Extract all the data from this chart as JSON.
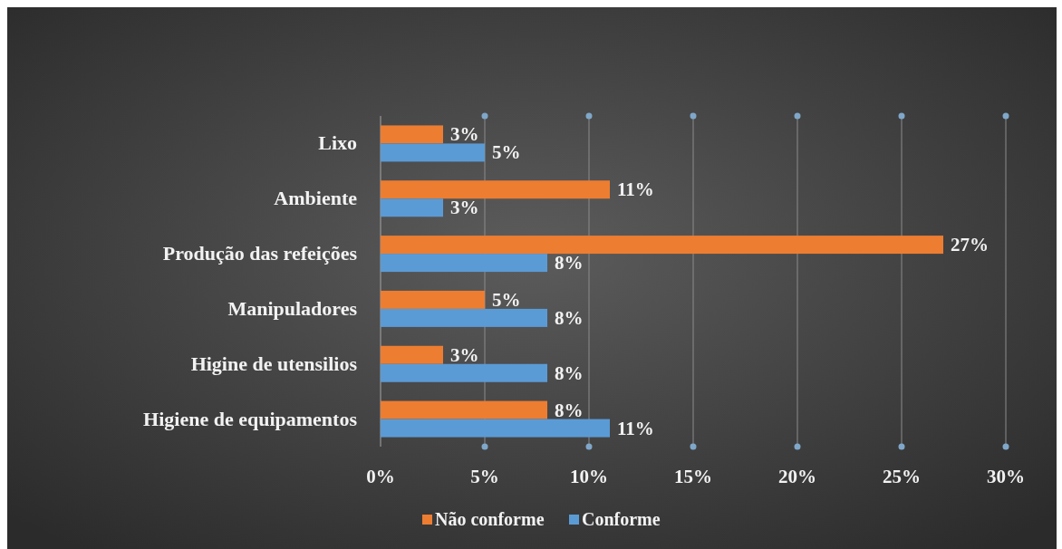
{
  "chart_data": {
    "type": "bar",
    "orientation": "horizontal",
    "categories": [
      "Lixo",
      "Ambiente",
      "Produção das refeições",
      "Manipuladores",
      "Higine de utensilios",
      "Higiene de equipamentos"
    ],
    "series": [
      {
        "name": "Não conforme",
        "color": "#ed7d31",
        "values": [
          3,
          11,
          27,
          5,
          3,
          8
        ],
        "value_labels": [
          "3%",
          "11%",
          "27%",
          "5%",
          "3%",
          "8%"
        ]
      },
      {
        "name": "Conforme",
        "color": "#5b9bd5",
        "values": [
          5,
          3,
          8,
          8,
          8,
          11
        ],
        "value_labels": [
          "5%",
          "3%",
          "8%",
          "8%",
          "8%",
          "11%"
        ]
      }
    ],
    "xlim": [
      0,
      30
    ],
    "xticks": [
      {
        "value": 0,
        "label": "0%"
      },
      {
        "value": 5,
        "label": "5%"
      },
      {
        "value": 10,
        "label": "10%"
      },
      {
        "value": 15,
        "label": "15%"
      },
      {
        "value": 20,
        "label": "20%"
      },
      {
        "value": 25,
        "label": "25%"
      },
      {
        "value": 30,
        "label": "30%"
      }
    ],
    "grid": "x",
    "legend": "bottom"
  }
}
